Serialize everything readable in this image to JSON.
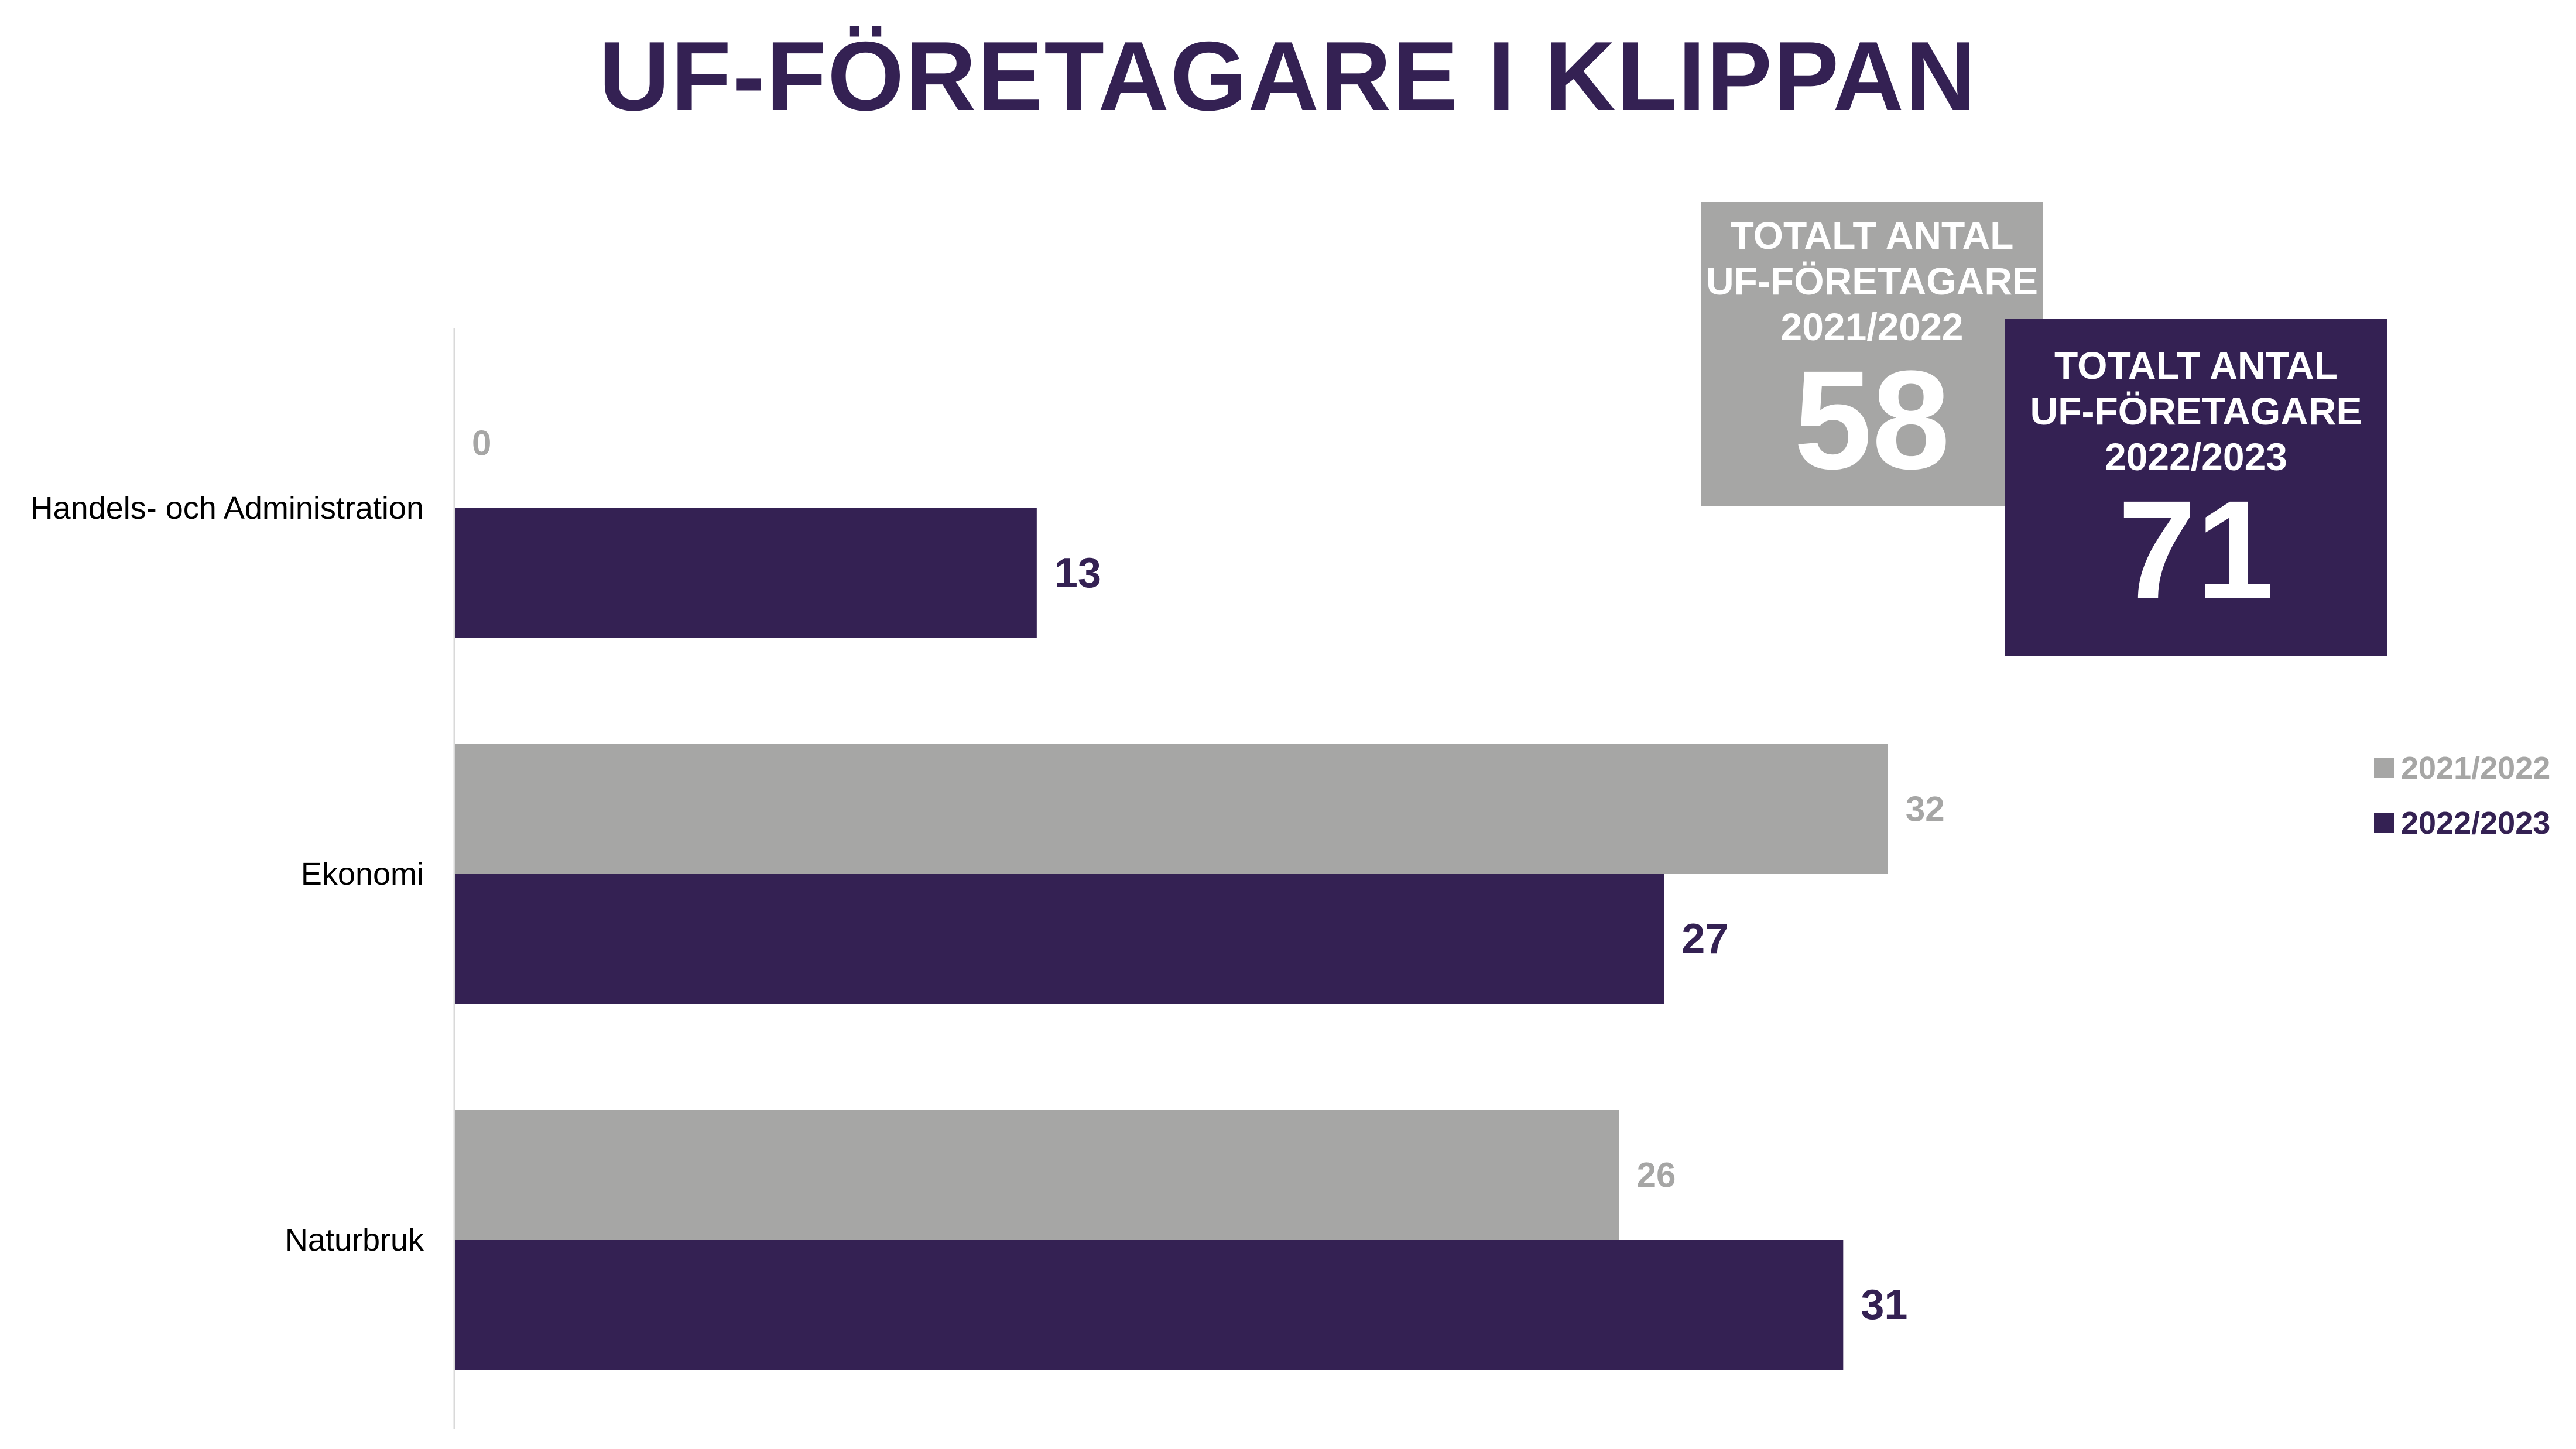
{
  "chart_data": {
    "type": "bar",
    "orientation": "horizontal",
    "title": "UF-FÖRETAGARE I KLIPPAN",
    "categories": [
      "Handels- och Administration",
      "Ekonomi",
      "Naturbruk"
    ],
    "series": [
      {
        "name": "2021/2022",
        "values": [
          0,
          32,
          26
        ],
        "color": "#a6a6a5"
      },
      {
        "name": "2022/2023",
        "values": [
          13,
          27,
          31
        ],
        "color": "#342153"
      }
    ],
    "xlim": [
      0,
      38
    ],
    "grid": false,
    "data_labels": true,
    "legend": "right"
  },
  "totals": [
    {
      "label": "TOTALT ANTAL\nUF-FÖRETAGARE\n2021/2022",
      "value": "58",
      "color": "#a6a6a5"
    },
    {
      "label": "TOTALT ANTAL\nUF-FÖRETAGARE\n2022/2023",
      "value": "71",
      "color": "#342153"
    }
  ],
  "colors": {
    "title": "#342153",
    "axis_line": "#d9d9d9",
    "category_label": "#000000"
  }
}
